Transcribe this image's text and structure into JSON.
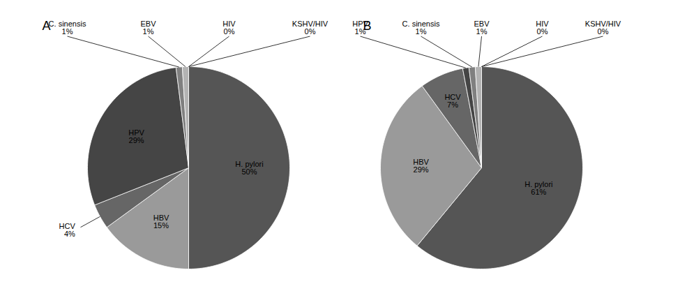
{
  "chart_data": [
    {
      "type": "pie",
      "title": "A",
      "categories": [
        "H. pylori",
        "HBV",
        "HCV",
        "HPV",
        "C. sinensis",
        "EBV",
        "HIV",
        "KSHV/HIV"
      ],
      "values": [
        50,
        15,
        4,
        29,
        1,
        1,
        0,
        0
      ],
      "value_labels": [
        "50%",
        "15%",
        "4%",
        "29%",
        "1%",
        "1%",
        "0%",
        "0%"
      ],
      "colors": [
        "#555555",
        "#9a9a9a",
        "#666666",
        "#454545",
        "#808080",
        "#b3b3b3",
        "#cccccc",
        "#dedede"
      ],
      "data_labels": true
    },
    {
      "type": "pie",
      "title": "B",
      "categories": [
        "H. pylori",
        "HBV",
        "HCV",
        "HPV",
        "C. sinensis",
        "EBV",
        "HIV",
        "KSHV/HIV"
      ],
      "values": [
        61,
        29,
        7,
        1,
        1,
        1,
        0,
        0
      ],
      "value_labels": [
        "61%",
        "29%",
        "7%",
        "1%",
        "1%",
        "1%",
        "0%",
        "0%"
      ],
      "colors": [
        "#555555",
        "#9a9a9a",
        "#666666",
        "#454545",
        "#808080",
        "#b3b3b3",
        "#cccccc",
        "#dedede"
      ],
      "data_labels": true
    }
  ]
}
